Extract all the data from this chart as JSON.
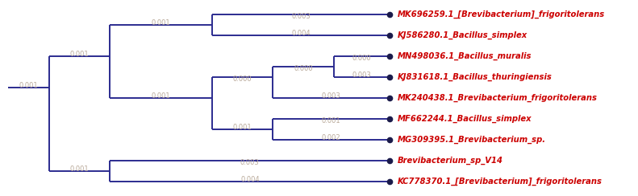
{
  "tree_color": "#2b2b8f",
  "label_color": "#cc0000",
  "branch_label_color": "#b8a898",
  "dot_color": "#1a1a4a",
  "background_color": "#ffffff",
  "taxa": [
    "MK696259.1_[Brevibacterium]_frigoritolerans",
    "KJ586280.1_Bacillus_simplex",
    "MN498036.1_Bacillus_muralis",
    "KJ831618.1_Bacillus_thuringiensis",
    "MK240438.1_Brevibacterium_frigoritolerans",
    "MF662244.1_Bacillus_simplex",
    "MG309395.1_Brevibacterium_sp.",
    "Brevibacterium_sp_V14",
    "KC778370.1_[Brevibacterium]_frigoritolerans"
  ],
  "label_fontsize": 7.2,
  "branch_label_fontsize": 6.0,
  "lw": 1.4
}
